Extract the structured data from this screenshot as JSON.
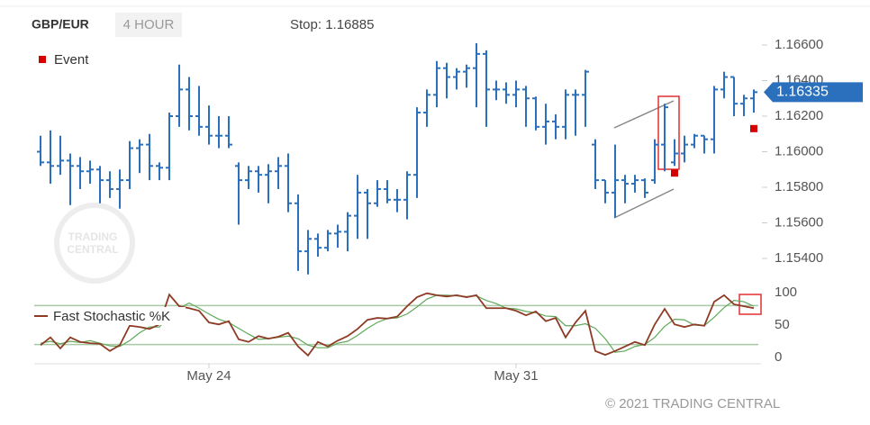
{
  "chart_data": [
    {
      "type": "ohlc",
      "title": "GBP/EUR",
      "timeframe": "4 HOUR",
      "subtitle": "Stop: 1.16885",
      "color": "#2b70bd",
      "open": [
        1.16,
        1.1594,
        1.1592,
        1.1595,
        1.1592,
        1.1589,
        1.159,
        1.1584,
        1.1579,
        1.1584,
        1.1602,
        1.1604,
        1.1592,
        1.1591,
        1.162,
        1.1635,
        1.162,
        1.1614,
        1.1609,
        1.1609,
        1.1592,
        1.1584,
        1.1589,
        1.1587,
        1.1589,
        1.1592,
        1.1571,
        1.1544,
        1.1551,
        1.1546,
        1.1554,
        1.1555,
        1.1564,
        1.1577,
        1.1571,
        1.1579,
        1.1573,
        1.1573,
        1.1587,
        1.1622,
        1.1632,
        1.1647,
        1.1642,
        1.1645,
        1.1647,
        1.1655,
        1.1635,
        1.1635,
        1.1632,
        1.1635,
        1.163,
        1.1614,
        1.1617,
        1.1614,
        1.1632,
        1.1632,
        1.1604,
        1.1584,
        1.1577,
        1.1584,
        1.1582,
        1.1584,
        1.1584,
        1.1604,
        1.1594,
        1.1599,
        1.1604,
        1.1609,
        1.1607,
        1.1635,
        1.1642,
        1.1627,
        1.163
      ],
      "high": [
        1.1609,
        1.1612,
        1.1609,
        1.1599,
        1.1597,
        1.1595,
        1.1592,
        1.1589,
        1.159,
        1.1606,
        1.1607,
        1.161,
        1.1594,
        1.1622,
        1.1649,
        1.1642,
        1.1637,
        1.1626,
        1.162,
        1.162,
        1.1594,
        1.1592,
        1.1592,
        1.1593,
        1.1597,
        1.1599,
        1.1576,
        1.1556,
        1.1554,
        1.1556,
        1.1559,
        1.1566,
        1.1587,
        1.1579,
        1.1584,
        1.1584,
        1.1579,
        1.1589,
        1.1625,
        1.1635,
        1.1651,
        1.165,
        1.1647,
        1.1649,
        1.1661,
        1.1657,
        1.164,
        1.1639,
        1.164,
        1.1637,
        1.1631,
        1.1627,
        1.1621,
        1.1635,
        1.1635,
        1.1646,
        1.1607,
        1.1584,
        1.1604,
        1.1587,
        1.1587,
        1.1585,
        1.1607,
        1.1627,
        1.1607,
        1.1609,
        1.161,
        1.1609,
        1.1637,
        1.1645,
        1.1642,
        1.1632,
        1.1635
      ],
      "low": [
        1.1592,
        1.1582,
        1.1587,
        1.157,
        1.1579,
        1.1582,
        1.1571,
        1.1574,
        1.1568,
        1.1579,
        1.1588,
        1.1584,
        1.1584,
        1.1584,
        1.1614,
        1.1612,
        1.1609,
        1.1604,
        1.1602,
        1.1602,
        1.1559,
        1.1579,
        1.1577,
        1.1571,
        1.1579,
        1.1566,
        1.1533,
        1.1531,
        1.1541,
        1.1544,
        1.1546,
        1.1544,
        1.1551,
        1.1551,
        1.1569,
        1.1571,
        1.1566,
        1.1562,
        1.1574,
        1.1614,
        1.1625,
        1.163,
        1.1635,
        1.1636,
        1.1625,
        1.1614,
        1.1629,
        1.1627,
        1.1625,
        1.1614,
        1.1612,
        1.1604,
        1.1607,
        1.1607,
        1.1609,
        1.1614,
        1.1579,
        1.1571,
        1.1563,
        1.1571,
        1.1577,
        1.1574,
        1.1582,
        1.1589,
        1.1592,
        1.1594,
        1.1602,
        1.1599,
        1.1599,
        1.163,
        1.162,
        1.162,
        1.1622
      ],
      "close": [
        1.1594,
        1.1592,
        1.1595,
        1.1592,
        1.1589,
        1.159,
        1.1584,
        1.1579,
        1.1584,
        1.1602,
        1.1604,
        1.1592,
        1.1591,
        1.162,
        1.1635,
        1.162,
        1.1614,
        1.1609,
        1.1609,
        1.1604,
        1.1584,
        1.1589,
        1.1587,
        1.1589,
        1.1592,
        1.1571,
        1.1544,
        1.1551,
        1.1546,
        1.1554,
        1.1555,
        1.1564,
        1.1577,
        1.1571,
        1.1579,
        1.1573,
        1.1573,
        1.1587,
        1.1622,
        1.1632,
        1.1647,
        1.1642,
        1.1645,
        1.1647,
        1.1655,
        1.1635,
        1.1635,
        1.1632,
        1.1635,
        1.163,
        1.1614,
        1.1617,
        1.1614,
        1.1632,
        1.1632,
        1.1645,
        1.1584,
        1.1577,
        1.1584,
        1.1582,
        1.1584,
        1.1577,
        1.1604,
        1.1625,
        1.1599,
        1.1604,
        1.1609,
        1.1607,
        1.1635,
        1.1642,
        1.1627,
        1.163,
        1.16335
      ],
      "last_price": 1.16335,
      "events": {
        "name": "Event",
        "color": "#d40000",
        "x": [
          64,
          72
        ],
        "values": [
          1.1588,
          1.1613
        ]
      },
      "ylim": [
        1.153,
        1.1676
      ],
      "yticks": [
        {
          "value": 1.154,
          "label": "1.15400"
        },
        {
          "value": 1.156,
          "label": "1.15600"
        },
        {
          "value": 1.158,
          "label": "1.15800"
        },
        {
          "value": 1.16,
          "label": "1.16000"
        },
        {
          "value": 1.162,
          "label": "1.16200"
        },
        {
          "value": 1.164,
          "label": "1.16400"
        },
        {
          "value": 1.166,
          "label": "1.16600"
        }
      ]
    },
    {
      "type": "line",
      "categories": [
        null,
        null,
        null,
        null,
        null,
        null,
        null,
        null,
        null,
        null,
        null,
        null,
        null,
        null,
        null,
        null,
        null,
        "May 24",
        null,
        null,
        null,
        null,
        null,
        null,
        null,
        null,
        null,
        null,
        null,
        null,
        null,
        null,
        null,
        null,
        null,
        null,
        null,
        null,
        null,
        null,
        null,
        null,
        null,
        null,
        null,
        null,
        null,
        null,
        "May 31",
        null,
        null,
        null,
        null,
        null,
        null,
        null,
        null,
        null,
        null,
        null,
        null,
        null,
        null,
        null,
        null,
        null,
        null,
        null,
        null,
        null,
        null,
        null,
        null
      ],
      "series": [
        {
          "name": "Fast Stochastic %K",
          "color": "#8e3b25",
          "values": [
            19,
            31,
            14,
            31,
            24,
            22,
            21,
            10,
            19,
            49,
            47,
            44,
            51,
            97,
            79,
            76,
            72,
            54,
            51,
            56,
            28,
            24,
            33,
            29,
            32,
            38,
            17,
            3,
            24,
            17,
            26,
            33,
            44,
            58,
            61,
            60,
            63,
            79,
            93,
            99,
            96,
            94,
            96,
            93,
            96,
            76,
            76,
            76,
            72,
            65,
            71,
            56,
            61,
            31,
            54,
            72,
            10,
            4,
            10,
            17,
            24,
            19,
            51,
            75,
            51,
            47,
            51,
            49,
            86,
            96,
            82,
            79,
            76
          ]
        },
        {
          "color": "#5fa85a",
          "values": [
            22,
            25,
            21,
            25,
            23,
            26,
            22,
            18,
            17,
            26,
            38,
            47,
            47,
            64,
            76,
            84,
            76,
            67,
            59,
            54,
            45,
            36,
            28,
            29,
            31,
            33,
            29,
            19,
            15,
            15,
            22,
            25,
            34,
            45,
            54,
            60,
            61,
            67,
            78,
            90,
            96,
            96,
            95,
            94,
            95,
            88,
            83,
            76,
            75,
            71,
            69,
            64,
            63,
            49,
            49,
            52,
            45,
            29,
            8,
            10,
            17,
            20,
            31,
            48,
            59,
            58,
            50,
            49,
            62,
            77,
            88,
            86,
            79
          ]
        }
      ],
      "levels": [
        20,
        80
      ],
      "ylim": [
        0,
        100
      ],
      "yticks": [
        0,
        50,
        100
      ]
    }
  ],
  "watermark": [
    "TRADING",
    "CENTRAL"
  ],
  "copyright": "© 2021 TRADING CENTRAL"
}
